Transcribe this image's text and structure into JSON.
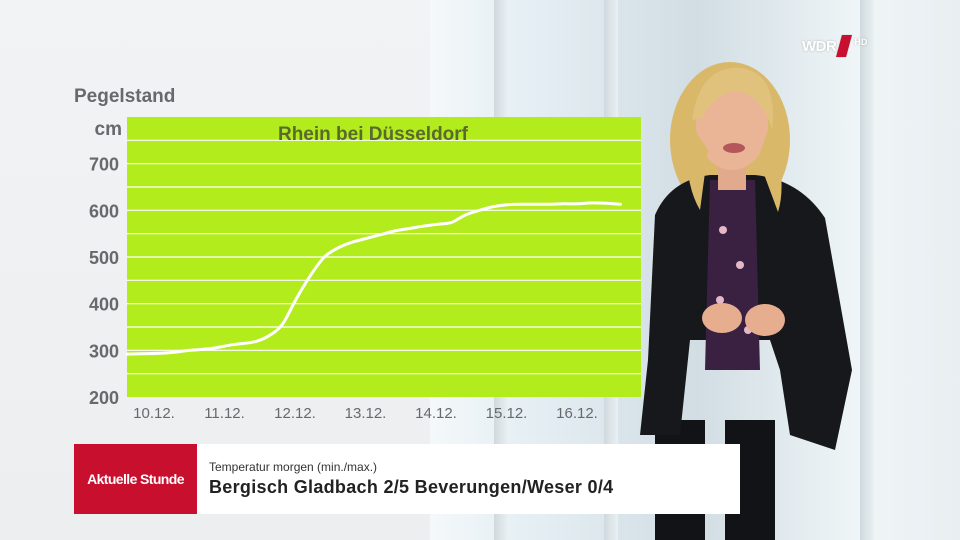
{
  "chart_data": {
    "type": "line",
    "title": "Rhein bei Düsseldorf",
    "ylabel": "Pegelstand",
    "yunit": "cm",
    "ylim": [
      200,
      800
    ],
    "yticks": [
      200,
      300,
      400,
      500,
      600,
      700
    ],
    "categories": [
      "10.12.",
      "11.12.",
      "12.12.",
      "13.12.",
      "14.12.",
      "15.12.",
      "16.12."
    ],
    "grid": true,
    "background_color": "#b3ec1c",
    "line_color": "#ffffff",
    "series": [
      {
        "x": [
          0,
          0.3,
          0.6,
          0.9,
          1.2,
          1.5,
          1.8,
          2.0,
          2.2,
          2.4,
          2.6,
          2.8,
          3.0,
          3.2,
          3.4,
          3.6,
          3.8,
          4.0,
          4.2,
          4.4,
          4.6,
          4.8,
          5.0,
          5.2,
          5.4,
          5.6,
          5.8,
          6.0,
          6.2,
          6.4,
          6.6,
          6.8,
          7.0
        ],
        "values": [
          292,
          293,
          295,
          300,
          304,
          312,
          318,
          330,
          355,
          410,
          460,
          500,
          520,
          532,
          540,
          548,
          556,
          561,
          566,
          570,
          574,
          590,
          600,
          608,
          612,
          613,
          613,
          613,
          614,
          614,
          616,
          615,
          613
        ]
      }
    ]
  },
  "lower_third": {
    "badge": "Aktuelle Stunde",
    "subtitle": "Temperatur morgen (min./max.)",
    "headline": "Bergisch Gladbach 2/5   Beverungen/Weser 0/4"
  },
  "logo": {
    "text": "WDR",
    "hd": "HD",
    "brand_color": "#c8102e"
  }
}
